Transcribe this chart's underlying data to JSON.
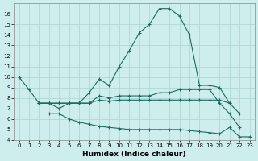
{
  "xlabel": "Humidex (Indice chaleur)",
  "background_color": "#ceeeed",
  "grid_color": "#aad4d3",
  "line_color": "#1a6b60",
  "xlim": [
    -0.5,
    23.5
  ],
  "ylim": [
    4,
    17
  ],
  "xticks": [
    0,
    1,
    2,
    3,
    4,
    5,
    6,
    7,
    8,
    9,
    10,
    11,
    12,
    13,
    14,
    15,
    16,
    17,
    18,
    19,
    20,
    21,
    22,
    23
  ],
  "yticks": [
    4,
    5,
    6,
    7,
    8,
    9,
    10,
    11,
    12,
    13,
    14,
    15,
    16
  ],
  "line1_x": [
    0,
    1,
    2,
    3,
    4,
    5,
    6,
    7,
    8,
    9,
    10,
    11,
    12,
    13,
    14,
    15,
    16,
    17,
    18,
    19,
    20,
    21,
    22
  ],
  "line1_y": [
    10.0,
    8.8,
    7.5,
    7.5,
    7.0,
    7.5,
    7.5,
    8.5,
    9.8,
    9.2,
    11.0,
    12.5,
    14.2,
    15.0,
    16.5,
    16.5,
    15.8,
    14.0,
    9.2,
    9.2,
    9.0,
    7.5,
    6.5
  ],
  "line2_x": [
    3,
    4,
    5,
    6,
    7,
    8,
    9,
    10,
    11,
    12,
    13,
    14,
    15,
    16,
    17,
    18,
    19,
    20,
    21,
    22,
    23
  ],
  "line2_y": [
    6.5,
    6.5,
    6.0,
    5.7,
    5.5,
    5.3,
    5.2,
    5.1,
    5.0,
    5.0,
    5.0,
    5.0,
    5.0,
    5.0,
    4.9,
    4.8,
    4.7,
    4.6,
    5.2,
    4.3,
    4.3
  ],
  "line3_x": [
    2,
    3,
    4,
    5,
    6,
    7,
    8,
    9,
    10,
    11,
    12,
    13,
    14,
    15,
    16,
    17,
    18,
    19,
    20,
    21,
    22
  ],
  "line3_y": [
    7.5,
    7.5,
    7.5,
    7.5,
    7.5,
    7.5,
    8.2,
    8.0,
    8.2,
    8.2,
    8.2,
    8.2,
    8.5,
    8.5,
    8.8,
    8.8,
    8.8,
    8.8,
    7.5,
    6.5,
    5.2
  ],
  "line4_x": [
    2,
    3,
    4,
    5,
    6,
    7,
    8,
    9,
    10,
    11,
    12,
    13,
    14,
    15,
    16,
    17,
    18,
    19,
    20,
    21
  ],
  "line4_y": [
    7.5,
    7.5,
    7.5,
    7.5,
    7.5,
    7.5,
    7.8,
    7.7,
    7.8,
    7.8,
    7.8,
    7.8,
    7.8,
    7.8,
    7.8,
    7.8,
    7.8,
    7.8,
    7.8,
    7.5
  ]
}
